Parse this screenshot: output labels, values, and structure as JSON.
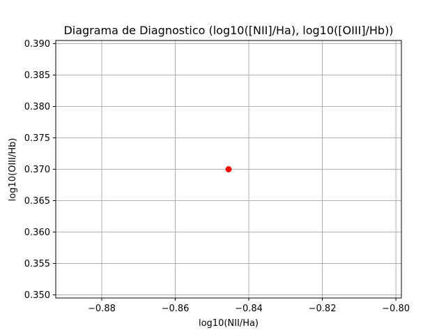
{
  "chart_data": {
    "type": "scatter",
    "title": "Diagrama de Diagnostico (log10([NII]/Ha), log10([OIII]/Hb))",
    "xlabel": "log10(NII/Ha)",
    "ylabel": "log10(OIII/Hb)",
    "xlim": [
      -0.8925,
      -0.7985
    ],
    "ylim": [
      0.3495,
      0.3905
    ],
    "xticks": [
      -0.88,
      -0.86,
      -0.84,
      -0.82,
      -0.8
    ],
    "xtick_labels": [
      "−0.88",
      "−0.86",
      "−0.84",
      "−0.82",
      "−0.80"
    ],
    "yticks": [
      0.35,
      0.355,
      0.36,
      0.365,
      0.37,
      0.375,
      0.38,
      0.385,
      0.39
    ],
    "ytick_labels": [
      "0.350",
      "0.355",
      "0.360",
      "0.365",
      "0.370",
      "0.375",
      "0.380",
      "0.385",
      "0.390"
    ],
    "grid": true,
    "points": [
      {
        "x": -0.8455,
        "y": 0.37,
        "color": "#ff0000"
      }
    ]
  }
}
